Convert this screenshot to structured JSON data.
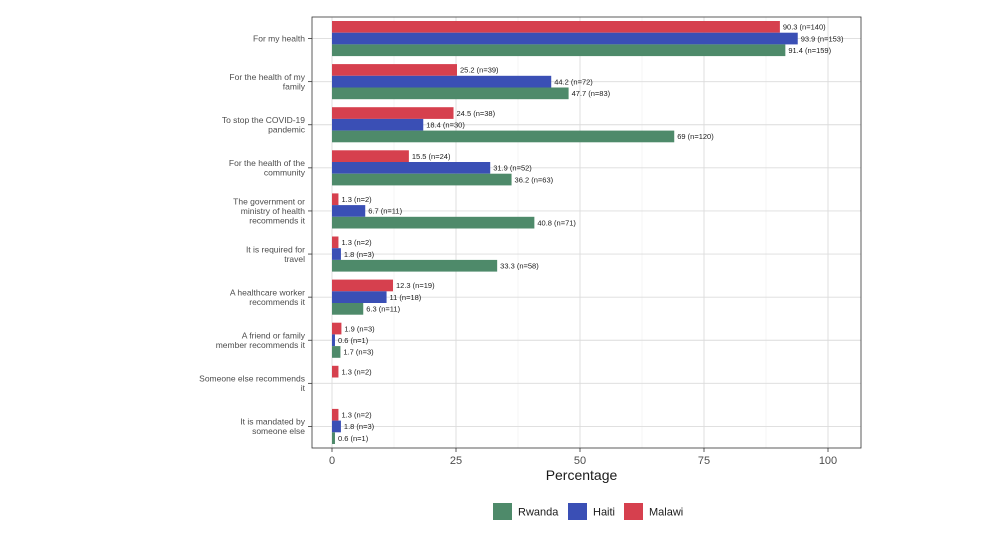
{
  "chart_data": {
    "type": "bar",
    "orientation": "horizontal",
    "xlabel": "Percentage",
    "xlim": [
      0,
      105
    ],
    "xticks": [
      "0",
      "25",
      "50",
      "75",
      "100"
    ],
    "grid": true,
    "legend_position": "bottom",
    "categories": [
      [
        "For my health"
      ],
      [
        "For the health of my",
        "family"
      ],
      [
        "To stop the COVID-19",
        "pandemic"
      ],
      [
        "For the health of the",
        "community"
      ],
      [
        "The government or",
        "ministry of health",
        "recommends it"
      ],
      [
        "It is required for",
        "travel"
      ],
      [
        "A healthcare worker",
        "recommends it"
      ],
      [
        "A friend or family",
        "member recommends it"
      ],
      [
        "Someone else recommends",
        "it"
      ],
      [
        "It is mandated by",
        "someone else"
      ]
    ],
    "series": [
      {
        "name": "Malawi",
        "color": "#d6404e",
        "values": [
          90.3,
          25.2,
          24.5,
          15.5,
          1.3,
          1.3,
          12.3,
          1.9,
          1.3,
          1.3
        ],
        "labels": [
          "90.3 (n=140)",
          "25.2 (n=39)",
          "24.5 (n=38)",
          "15.5 (n=24)",
          "1.3 (n=2)",
          "1.3 (n=2)",
          "12.3 (n=19)",
          "1.9 (n=3)",
          "1.3 (n=2)",
          "1.3 (n=2)"
        ]
      },
      {
        "name": "Haiti",
        "color": "#3a4fb5",
        "values": [
          93.9,
          44.2,
          18.4,
          31.9,
          6.7,
          1.8,
          11,
          0.6,
          null,
          1.8
        ],
        "labels": [
          "93.9 (n=153)",
          "44.2 (n=72)",
          "18.4 (n=30)",
          "31.9 (n=52)",
          "6.7 (n=11)",
          "1.8 (n=3)",
          "11 (n=18)",
          "0.6 (n=1)",
          "",
          "1.8 (n=3)"
        ]
      },
      {
        "name": "Rwanda",
        "color": "#4e8a6a",
        "values": [
          91.4,
          47.7,
          69,
          36.2,
          40.8,
          33.3,
          6.3,
          1.7,
          null,
          0.6
        ],
        "labels": [
          "91.4 (n=159)",
          "47.7 (n=83)",
          "69 (n=120)",
          "36.2 (n=63)",
          "40.8 (n=71)",
          "33.3 (n=58)",
          "6.3 (n=11)",
          "1.7 (n=3)",
          "",
          "0.6 (n=1)"
        ]
      }
    ],
    "legend_order": [
      "Rwanda",
      "Haiti",
      "Malawi"
    ]
  }
}
